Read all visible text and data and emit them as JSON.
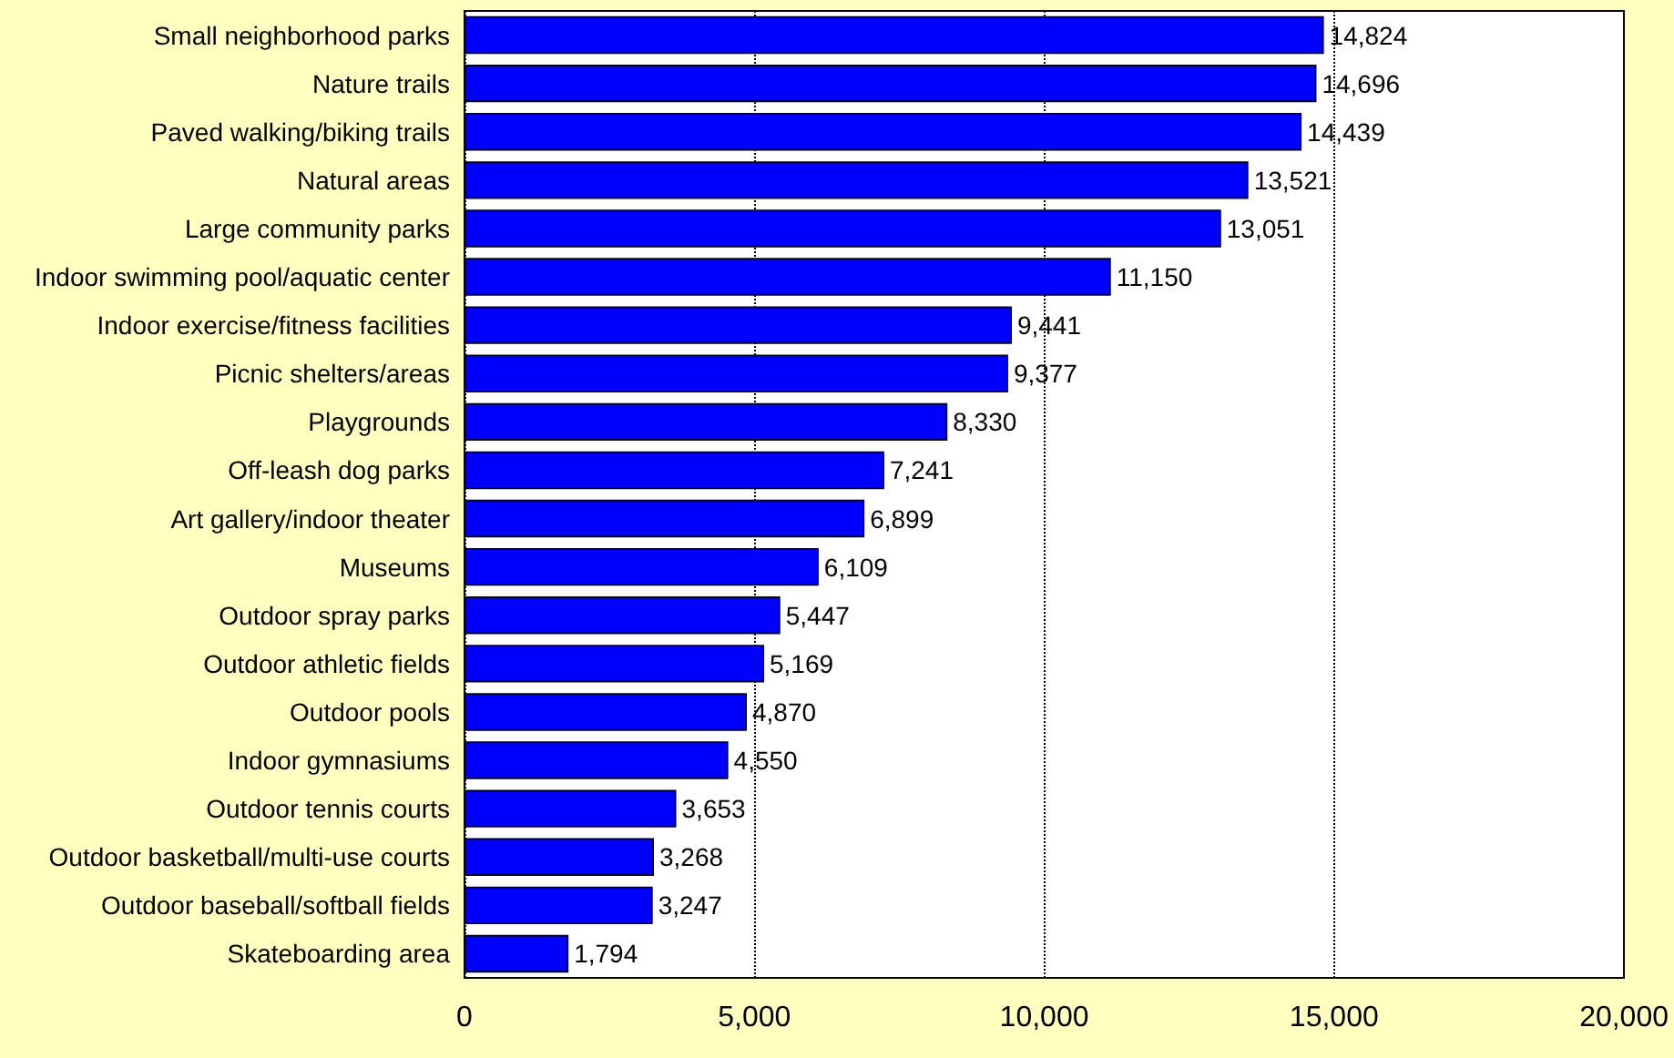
{
  "chart_data": {
    "type": "bar",
    "orientation": "horizontal",
    "categories": [
      "Small neighborhood parks",
      "Nature trails",
      "Paved walking/biking trails",
      "Natural areas",
      "Large community parks",
      "Indoor swimming pool/aquatic center",
      "Indoor exercise/fitness facilities",
      "Picnic shelters/areas",
      "Playgrounds",
      "Off-leash dog parks",
      "Art gallery/indoor theater",
      "Museums",
      "Outdoor spray parks",
      "Outdoor athletic fields",
      "Outdoor pools",
      "Indoor gymnasiums",
      "Outdoor tennis courts",
      "Outdoor basketball/multi-use courts",
      "Outdoor baseball/softball fields",
      "Skateboarding area"
    ],
    "values": [
      14824,
      14696,
      14439,
      13521,
      13051,
      11150,
      9441,
      9377,
      8330,
      7241,
      6899,
      6109,
      5447,
      5169,
      4870,
      4550,
      3653,
      3268,
      3247,
      1794
    ],
    "value_labels": [
      "14,824",
      "14,696",
      "14,439",
      "13,521",
      "13,051",
      "11,150",
      "9,441",
      "9,377",
      "8,330",
      "7,241",
      "6,899",
      "6,109",
      "5,447",
      "5,169",
      "4,870",
      "4,550",
      "3,653",
      "3,268",
      "3,247",
      "1,794"
    ],
    "color": "#0000ff",
    "xlim": [
      0,
      20000
    ],
    "xticks": [
      0,
      {
        "value": 5000,
        "label": "5,000"
      },
      {
        "value": 10000,
        "label": "10,000"
      },
      {
        "value": 15000,
        "label": "15,000"
      },
      {
        "value": 20000,
        "label": "20,000"
      }
    ],
    "grid": "x"
  }
}
